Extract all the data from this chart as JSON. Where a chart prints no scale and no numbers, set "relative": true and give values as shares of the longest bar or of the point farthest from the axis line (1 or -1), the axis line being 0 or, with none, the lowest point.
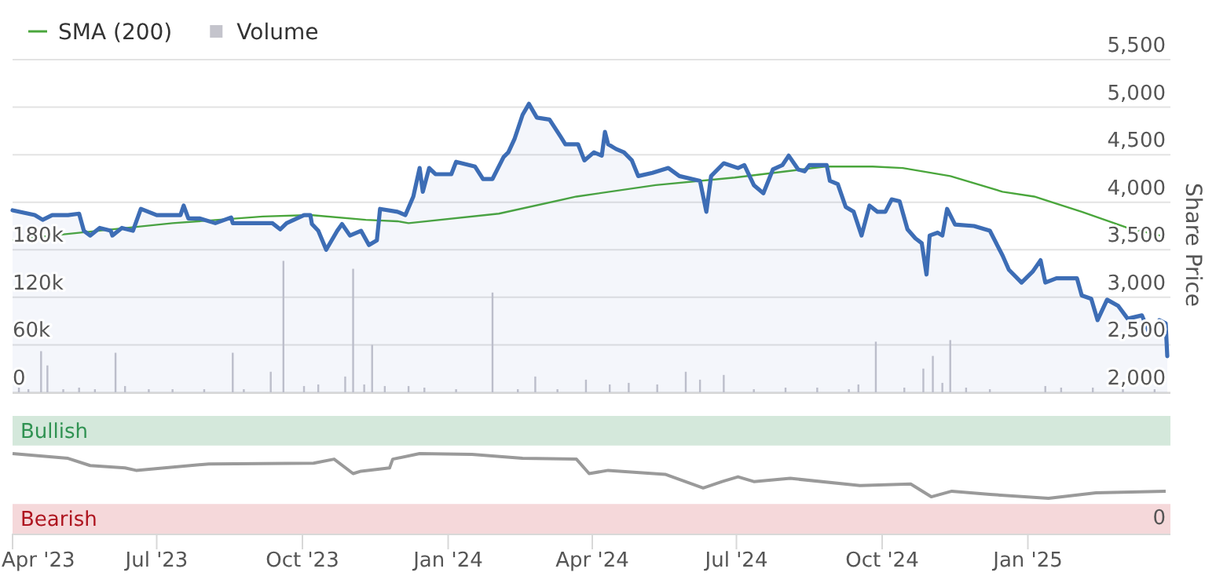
{
  "chart_data": [
    {
      "type": "area",
      "ylabel": "Share Price",
      "legend": "top left",
      "grid": "y",
      "tick_labels": "y",
      "xlim": [
        "2023-04-01",
        "2025-04-01"
      ],
      "ylim": [
        2000,
        5500
      ],
      "yticks": [
        {
          "value": 2000,
          "label": "2,000"
        },
        {
          "value": 2500,
          "label": "2,500"
        },
        {
          "value": 3000,
          "label": "3,000"
        },
        {
          "value": 3500,
          "label": "3,500"
        },
        {
          "value": 4000,
          "label": "4,000"
        },
        {
          "value": 4500,
          "label": "4,500"
        },
        {
          "value": 5000,
          "label": "5,000"
        },
        {
          "value": 5500,
          "label": "5,500"
        }
      ],
      "y2lim": [
        0,
        420000
      ],
      "y2ticks": [
        0,
        {
          "value": 60000,
          "label": "60k"
        },
        {
          "value": 120000,
          "label": "120k"
        },
        {
          "value": 180000,
          "label": "180k"
        }
      ],
      "series": [
        {
          "color": "#3d6db5",
          "x": [
            "2023-04-01",
            "2023-04-15",
            "2023-04-20",
            "2023-04-26",
            "2023-05-06",
            "2023-05-13",
            "2023-05-16",
            "2023-05-20",
            "2023-05-26",
            "2023-06-02",
            "2023-06-03",
            "2023-06-09",
            "2023-06-16",
            "2023-06-21",
            "2023-07-01",
            "2023-07-16",
            "2023-07-18",
            "2023-07-21",
            "2023-07-28",
            "2023-08-07",
            "2023-08-17",
            "2023-08-18",
            "2023-09-12",
            "2023-09-17",
            "2023-09-21",
            "2023-10-02",
            "2023-10-06",
            "2023-10-07",
            "2023-10-11",
            "2023-10-16",
            "2023-10-23",
            "2023-10-26",
            "2023-10-31",
            "2023-11-07",
            "2023-11-12",
            "2023-11-17",
            "2023-11-19",
            "2023-11-30",
            "2023-12-05",
            "2023-12-10",
            "2023-12-14",
            "2023-12-16",
            "2023-12-20",
            "2023-12-24",
            "2024-01-03",
            "2024-01-06",
            "2024-01-18",
            "2024-01-23",
            "2024-01-29",
            "2024-02-05",
            "2024-02-08",
            "2024-02-12",
            "2024-02-17",
            "2024-02-21",
            "2024-02-26",
            "2024-03-05",
            "2024-03-12",
            "2024-03-15",
            "2024-03-23",
            "2024-03-27",
            "2024-04-02",
            "2024-04-07",
            "2024-04-09",
            "2024-04-11",
            "2024-04-16",
            "2024-04-21",
            "2024-04-26",
            "2024-04-30",
            "2024-05-09",
            "2024-05-19",
            "2024-05-26",
            "2024-06-08",
            "2024-06-12",
            "2024-06-15",
            "2024-06-23",
            "2024-07-02",
            "2024-07-06",
            "2024-07-12",
            "2024-07-18",
            "2024-07-24",
            "2024-07-30",
            "2024-08-03",
            "2024-08-09",
            "2024-08-13",
            "2024-08-16",
            "2024-08-27",
            "2024-08-29",
            "2024-09-03",
            "2024-09-08",
            "2024-09-13",
            "2024-09-18",
            "2024-09-23",
            "2024-09-28",
            "2024-10-03",
            "2024-10-07",
            "2024-10-12",
            "2024-10-17",
            "2024-10-22",
            "2024-10-26",
            "2024-10-29",
            "2024-10-31",
            "2024-11-05",
            "2024-11-08",
            "2024-11-11",
            "2024-11-16",
            "2024-11-28",
            "2024-12-08",
            "2024-12-16",
            "2024-12-20",
            "2024-12-28",
            "2025-01-04",
            "2025-01-09",
            "2025-01-12",
            "2025-01-19",
            "2025-02-01",
            "2025-02-04",
            "2025-02-10",
            "2025-02-14",
            "2025-02-20",
            "2025-02-27",
            "2025-03-05",
            "2025-03-14",
            "2025-03-19",
            "2025-03-25",
            "2025-03-29",
            "2025-03-30"
          ],
          "values": [
            3915,
            3865,
            3815,
            3865,
            3865,
            3880,
            3700,
            3650,
            3730,
            3700,
            3650,
            3730,
            3700,
            3930,
            3865,
            3865,
            3965,
            3830,
            3830,
            3780,
            3840,
            3780,
            3780,
            3715,
            3780,
            3865,
            3865,
            3770,
            3700,
            3500,
            3700,
            3770,
            3650,
            3700,
            3550,
            3600,
            3930,
            3900,
            3865,
            4060,
            4360,
            4110,
            4360,
            4295,
            4295,
            4425,
            4375,
            4245,
            4245,
            4475,
            4525,
            4670,
            4920,
            5035,
            4890,
            4870,
            4690,
            4610,
            4610,
            4440,
            4525,
            4490,
            4740,
            4610,
            4560,
            4525,
            4440,
            4275,
            4310,
            4360,
            4275,
            4225,
            3900,
            4275,
            4410,
            4360,
            4390,
            4180,
            4095,
            4345,
            4390,
            4490,
            4345,
            4325,
            4390,
            4390,
            4225,
            4190,
            3950,
            3900,
            3650,
            3965,
            3900,
            3900,
            4030,
            4010,
            3715,
            3620,
            3570,
            3240,
            3650,
            3680,
            3650,
            3930,
            3765,
            3750,
            3700,
            3440,
            3290,
            3155,
            3270,
            3390,
            3155,
            3200,
            3200,
            3020,
            2985,
            2760,
            2975,
            2910,
            2775,
            2810,
            2610,
            2760,
            2725,
            2380
          ]
        },
        {
          "name": "SMA (200)",
          "type": "line",
          "color": "#4aa63c",
          "x": [
            "2023-04-01",
            "2023-04-26",
            "2023-07-11",
            "2023-09-06",
            "2023-10-06",
            "2023-11-10",
            "2023-11-30",
            "2023-12-07",
            "2024-02-02",
            "2024-03-22",
            "2024-05-11",
            "2024-06-30",
            "2024-08-11",
            "2024-08-26",
            "2024-09-25",
            "2024-10-14",
            "2024-11-13",
            "2024-12-16",
            "2025-01-05",
            "2025-02-04",
            "2025-03-05",
            "2025-03-29"
          ],
          "values": [
            3600,
            3650,
            3780,
            3850,
            3865,
            3815,
            3800,
            3780,
            3880,
            4060,
            4180,
            4260,
            4345,
            4375,
            4375,
            4360,
            4275,
            4110,
            4060,
            3900,
            3730,
            3635
          ]
        },
        {
          "name": "Volume",
          "type": "bar",
          "axis": "y2",
          "color": "#c4c4cc",
          "x": [
            "2023-04-05",
            "2023-04-11",
            "2023-04-19",
            "2023-04-23",
            "2023-05-03",
            "2023-05-13",
            "2023-05-23",
            "2023-06-05",
            "2023-06-11",
            "2023-06-26",
            "2023-07-11",
            "2023-07-31",
            "2023-08-18",
            "2023-08-25",
            "2023-09-11",
            "2023-09-19",
            "2023-10-02",
            "2023-10-11",
            "2023-10-28",
            "2023-11-02",
            "2023-11-09",
            "2023-11-14",
            "2023-11-22",
            "2023-12-07",
            "2023-12-17",
            "2024-01-06",
            "2024-01-29",
            "2024-02-14",
            "2024-02-25",
            "2024-03-10",
            "2024-03-28",
            "2024-04-12",
            "2024-04-24",
            "2024-05-12",
            "2024-05-30",
            "2024-06-08",
            "2024-06-23",
            "2024-07-12",
            "2024-08-01",
            "2024-08-21",
            "2024-09-10",
            "2024-09-16",
            "2024-09-27",
            "2024-10-15",
            "2024-10-27",
            "2024-11-02",
            "2024-11-08",
            "2024-11-13",
            "2024-11-23",
            "2024-12-08",
            "2025-01-12",
            "2025-01-22",
            "2025-02-11",
            "2025-03-02",
            "2025-03-22"
          ],
          "values": [
            6000,
            4000,
            52000,
            34000,
            4000,
            6000,
            4000,
            50000,
            8000,
            4000,
            4000,
            4000,
            50000,
            4000,
            26000,
            166000,
            8000,
            10000,
            20000,
            156000,
            10000,
            60000,
            8000,
            8000,
            6000,
            4000,
            126000,
            4000,
            20000,
            4000,
            16000,
            10000,
            12000,
            10000,
            26000,
            16000,
            22000,
            4000,
            6000,
            6000,
            4000,
            10000,
            64000,
            6000,
            30000,
            46000,
            12000,
            66000,
            6000,
            4000,
            8000,
            6000,
            6000,
            6000,
            4000
          ]
        }
      ]
    },
    {
      "type": "line",
      "xlim": [
        "2023-04-01",
        "2025-04-01"
      ],
      "xticks": [
        {
          "value": "2023-04-01",
          "label": "Apr '23"
        },
        {
          "value": "2023-07-01",
          "label": "Jul '23"
        },
        {
          "value": "2023-10-01",
          "label": "Oct '23"
        },
        {
          "value": "2024-01-01",
          "label": "Jan '24"
        },
        {
          "value": "2024-04-01",
          "label": "Apr '24"
        },
        {
          "value": "2024-07-01",
          "label": "Jul '24"
        },
        {
          "value": "2024-10-01",
          "label": "Oct '24"
        },
        {
          "value": "2025-01-01",
          "label": "Jan '25"
        }
      ],
      "relative": true,
      "annotations": [
        "0"
      ],
      "bands": [
        {
          "axis": "y",
          "from": 1.1,
          "to": 1.47,
          "label": "Bullish",
          "color": "#d4e8db"
        },
        {
          "axis": "y",
          "from": 0,
          "to": 0.37,
          "label": "Bearish",
          "color": "#f5d8da"
        }
      ],
      "series": [
        {
          "color": "#9a9a9a",
          "x": [
            "2023-04-01",
            "2023-05-06",
            "2023-05-20",
            "2023-06-11",
            "2023-06-18",
            "2023-08-03",
            "2023-10-08",
            "2023-10-21",
            "2023-11-02",
            "2023-11-07",
            "2023-11-25",
            "2023-11-27",
            "2023-12-14",
            "2024-01-16",
            "2024-02-17",
            "2024-03-22",
            "2024-03-30",
            "2024-04-11",
            "2024-05-17",
            "2024-06-10",
            "2024-06-22",
            "2024-07-02",
            "2024-07-12",
            "2024-08-04",
            "2024-09-17",
            "2024-10-19",
            "2024-11-01",
            "2024-11-14",
            "2024-12-08",
            "2025-01-14",
            "2025-02-13",
            "2025-03-29"
          ],
          "values": [
            1,
            0.94,
            0.85,
            0.82,
            0.79,
            0.87,
            0.88,
            0.93,
            0.75,
            0.78,
            0.82,
            0.93,
            1,
            0.99,
            0.94,
            0.93,
            0.75,
            0.79,
            0.74,
            0.57,
            0.65,
            0.71,
            0.65,
            0.69,
            0.6,
            0.62,
            0.46,
            0.53,
            0.49,
            0.44,
            0.51,
            0.53
          ]
        }
      ]
    }
  ]
}
